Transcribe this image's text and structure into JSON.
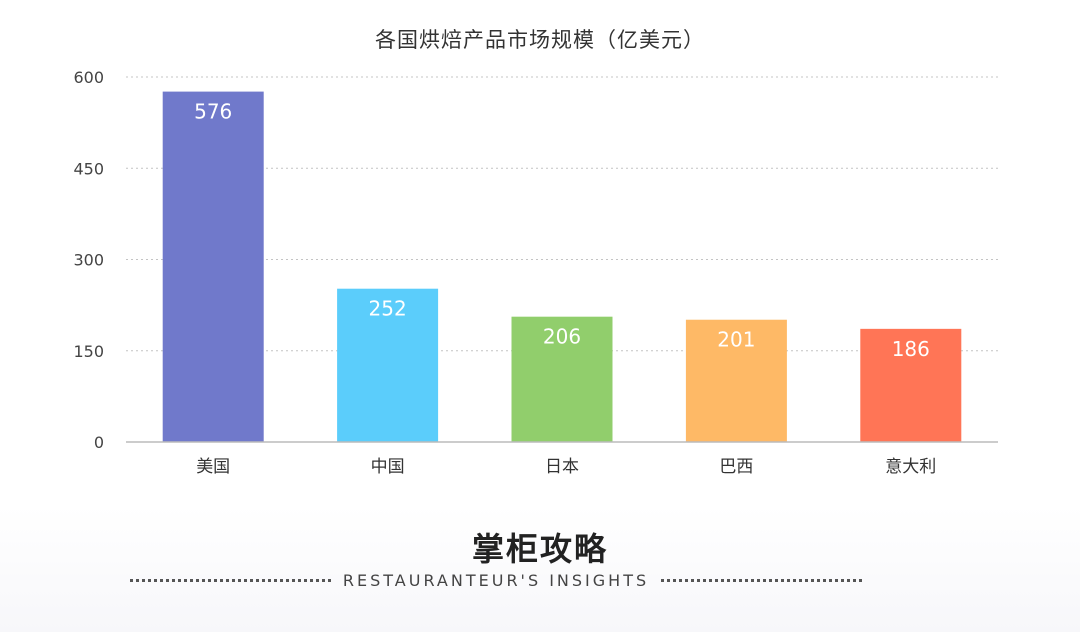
{
  "chart_data": {
    "type": "bar",
    "title": "各国烘焙产品市场规模（亿美元）",
    "categories": [
      "美国",
      "中国",
      "日本",
      "巴西",
      "意大利"
    ],
    "values": [
      576,
      252,
      206,
      201,
      186
    ],
    "colors": [
      "#7079CB",
      "#5BCDFB",
      "#91CE6C",
      "#FEB966",
      "#FF7556"
    ],
    "ylim": [
      0,
      600
    ],
    "yticks": [
      0,
      150,
      300,
      450,
      600
    ],
    "grid": true,
    "xlabel": "",
    "ylabel": "",
    "legend": "none"
  },
  "footer": {
    "brand": "掌柜攻略",
    "tagline": "RESTAURANTEUR'S INSIGHTS"
  }
}
